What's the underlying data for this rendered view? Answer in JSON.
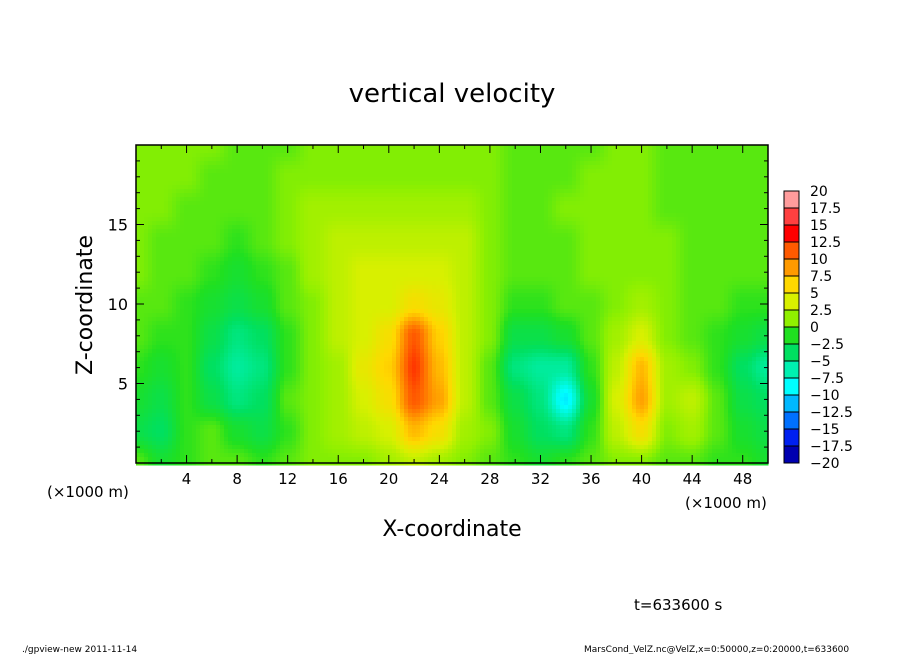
{
  "chart_data": {
    "type": "heatmap",
    "title": "vertical velocity",
    "xlabel": "X-coordinate",
    "ylabel": "Z-coordinate",
    "x_unit_label": "(×1000 m)",
    "y_unit_label": "(×1000 m)",
    "xlim": [
      0,
      50
    ],
    "ylim": [
      0,
      20
    ],
    "x_ticks": [
      4,
      8,
      12,
      16,
      20,
      24,
      28,
      32,
      36,
      40,
      44,
      48
    ],
    "y_ticks": [
      5,
      10,
      15
    ],
    "grid_x": [
      0,
      2,
      4,
      6,
      8,
      10,
      12,
      14,
      16,
      18,
      20,
      22,
      24,
      26,
      28,
      30,
      32,
      34,
      36,
      38,
      40,
      42,
      44,
      46,
      48,
      50
    ],
    "grid_z": [
      0,
      2,
      4,
      6,
      8,
      10,
      12,
      14,
      16,
      18,
      20
    ],
    "values": [
      [
        0,
        -2,
        -1,
        0,
        0,
        -1,
        0,
        1,
        1,
        1,
        2,
        3,
        2,
        1,
        0,
        -1,
        -2,
        -1,
        0,
        1,
        1,
        0,
        0,
        -1,
        -1,
        -2
      ],
      [
        -3,
        -4,
        -1,
        0,
        -2,
        -3,
        -1,
        1,
        2,
        3,
        4,
        8,
        6,
        2,
        1,
        -2,
        -4,
        -5,
        -1,
        3,
        6,
        1,
        2,
        0,
        -2,
        -3
      ],
      [
        -2,
        -3,
        -1,
        -3,
        -5,
        -4,
        0,
        1,
        2,
        4,
        6,
        12,
        9,
        3,
        0,
        -3,
        -5,
        -10,
        -2,
        4,
        9,
        2,
        3,
        0,
        -3,
        -4
      ],
      [
        -1,
        -2,
        -1,
        -4,
        -6,
        -5,
        -1,
        1,
        2,
        5,
        7,
        13,
        8,
        3,
        0,
        -5,
        -6,
        -6,
        -1,
        3,
        8,
        2,
        1,
        -1,
        -4,
        -6
      ],
      [
        0,
        -1,
        -1,
        -3,
        -5,
        -4,
        -1,
        1,
        3,
        4,
        6,
        12,
        7,
        3,
        1,
        -3,
        -3,
        -2,
        0,
        2,
        4,
        1,
        0,
        -1,
        -2,
        -3
      ],
      [
        0,
        0,
        -1,
        -2,
        -3,
        -2,
        0,
        1,
        3,
        4,
        4,
        6,
        5,
        3,
        1,
        -1,
        -1,
        0,
        0,
        1,
        2,
        1,
        0,
        0,
        -1,
        -1
      ],
      [
        1,
        0,
        0,
        -1,
        -2,
        -1,
        0,
        2,
        3,
        4,
        4,
        4,
        4,
        3,
        1,
        0,
        0,
        0,
        1,
        1,
        1,
        1,
        0,
        0,
        0,
        0
      ],
      [
        1,
        0,
        0,
        0,
        -1,
        0,
        1,
        2,
        3,
        3,
        3,
        3,
        3,
        3,
        1,
        0,
        0,
        0,
        1,
        1,
        1,
        1,
        0,
        0,
        0,
        0
      ],
      [
        1,
        1,
        0,
        0,
        0,
        0,
        1,
        2,
        2,
        2,
        2,
        2,
        2,
        2,
        1,
        0,
        0,
        1,
        1,
        1,
        1,
        0,
        0,
        0,
        0,
        0
      ],
      [
        1,
        1,
        1,
        0,
        0,
        0,
        1,
        1,
        1,
        1,
        1,
        1,
        1,
        1,
        1,
        0,
        0,
        0,
        1,
        1,
        1,
        0,
        0,
        0,
        0,
        0
      ],
      [
        1,
        1,
        1,
        1,
        0,
        0,
        0,
        1,
        1,
        1,
        1,
        1,
        1,
        1,
        1,
        0,
        0,
        0,
        0,
        1,
        1,
        0,
        0,
        0,
        0,
        0
      ]
    ],
    "colorbar": {
      "labels": [
        "20",
        "17.5",
        "15",
        "12.5",
        "10",
        "7.5",
        "5",
        "2.5",
        "0",
        "−2.5",
        "−5",
        "−7.5",
        "−10",
        "−12.5",
        "−15",
        "−17.5",
        "−20"
      ],
      "levels": [
        20,
        17.5,
        15,
        12.5,
        10,
        7.5,
        5,
        2.5,
        0,
        -2.5,
        -5,
        -7.5,
        -10,
        -12.5,
        -15,
        -17.5,
        -20
      ],
      "colors": [
        "#ff9c9c",
        "#ff4040",
        "#ff0000",
        "#ff5a00",
        "#ff9a00",
        "#ffd800",
        "#d8f000",
        "#90f000",
        "#20e020",
        "#00e060",
        "#00f0b0",
        "#00ffff",
        "#00b8ff",
        "#0070ff",
        "#0020f0",
        "#0000b0",
        "#6010b0"
      ]
    },
    "time_label": "t=633600 s"
  },
  "footer": {
    "left": "./gpview-new  2011-11-14",
    "right": "MarsCond_VelZ.nc@VelZ,x=0:50000,z=0:20000,t=633600"
  }
}
